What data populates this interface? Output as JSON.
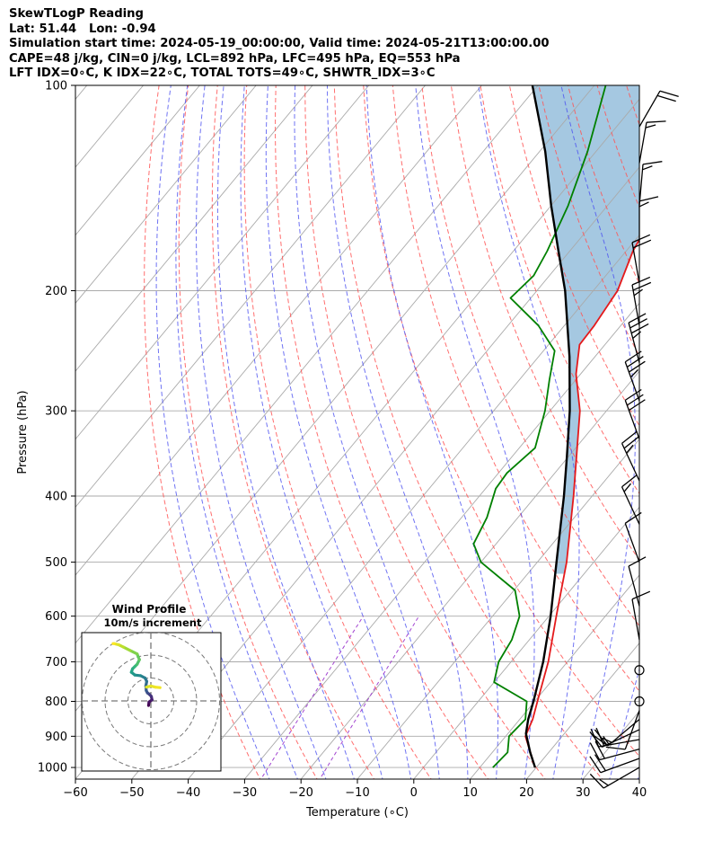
{
  "header_lines": [
    "SkewTLogP Reading",
    "Lat: 51.44   Lon: -0.94",
    "Simulation start time: 2024-05-19_00:00:00, Valid time: 2024-05-21T13:00:00.00",
    "CAPE=48 j/kg, CIN=0 j/kg, LCL=892 hPa, LFC=495 hPa, EQ=553 hPa",
    "LFT IDX=0∘C, K IDX=22∘C, TOTAL TOTS=49∘C, SHWTR_IDX=3∘C"
  ],
  "colors": {
    "temperature": "#e41a1c",
    "dewpoint": "#008000",
    "parcel": "#000000",
    "cape_fill": "#a5c8e1",
    "isotherm": "#aaaaaa",
    "dry_adiabat": "#ff5555",
    "moist_adiabat": "#4b50f0",
    "mixing_ratio": "#9932cc"
  },
  "chart_data": [
    {
      "type": "line",
      "subtype": "skew-t log-p diagram",
      "xlabel": "Temperature (∘C)",
      "ylabel": "Pressure (hPa)",
      "xlim": [
        -60,
        40
      ],
      "ylim": [
        1040,
        100
      ],
      "y_scale": "log (inverted)",
      "x_ticks": [
        -60,
        -50,
        -40,
        -30,
        -20,
        -10,
        0,
        10,
        20,
        30,
        40
      ],
      "x_tick_labels": [
        "−60",
        "−50",
        "−40",
        "−30",
        "−20",
        "−10",
        "0",
        "10",
        "20",
        "30",
        "40"
      ],
      "y_ticks": [
        1000,
        900,
        800,
        700,
        600,
        500,
        400,
        300,
        200,
        100
      ],
      "y_tick_labels": [
        "1000",
        "900",
        "800",
        "700",
        "600",
        "500",
        "400",
        "300",
        "200",
        "100"
      ],
      "grid": true,
      "series": [
        {
          "role": "temperature",
          "points": [
            {
              "p": 1000,
              "t": 19.8
            },
            {
              "p": 900,
              "t": 13.5
            },
            {
              "p": 850,
              "t": 12.3
            },
            {
              "p": 800,
              "t": 10.5
            },
            {
              "p": 700,
              "t": 6.6
            },
            {
              "p": 600,
              "t": 1.3
            },
            {
              "p": 500,
              "t": -4.8
            },
            {
              "p": 400,
              "t": -13.3
            },
            {
              "p": 350,
              "t": -18.6
            },
            {
              "p": 300,
              "t": -24.7
            },
            {
              "p": 265,
              "t": -30.8
            },
            {
              "p": 240,
              "t": -34.5
            },
            {
              "p": 225,
              "t": -34.7
            },
            {
              "p": 200,
              "t": -35.7
            },
            {
              "p": 175,
              "t": -38.8
            },
            {
              "p": 150,
              "t": -41.0
            },
            {
              "p": 125,
              "t": -43.2
            },
            {
              "p": 110,
              "t": -44.5
            },
            {
              "p": 100,
              "t": -45.2
            }
          ]
        },
        {
          "role": "dewpoint",
          "points": [
            {
              "p": 1000,
              "t": 12.3
            },
            {
              "p": 950,
              "t": 12.7
            },
            {
              "p": 900,
              "t": 10.6
            },
            {
              "p": 850,
              "t": 11.0
            },
            {
              "p": 800,
              "t": 8.6
            },
            {
              "p": 750,
              "t": 0.0
            },
            {
              "p": 700,
              "t": -2.2
            },
            {
              "p": 650,
              "t": -3.1
            },
            {
              "p": 600,
              "t": -5.2
            },
            {
              "p": 550,
              "t": -9.8
            },
            {
              "p": 500,
              "t": -20.0
            },
            {
              "p": 470,
              "t": -24.0
            },
            {
              "p": 430,
              "t": -25.5
            },
            {
              "p": 390,
              "t": -28.2
            },
            {
              "p": 370,
              "t": -28.5
            },
            {
              "p": 340,
              "t": -27.2
            },
            {
              "p": 300,
              "t": -30.9
            },
            {
              "p": 270,
              "t": -34.7
            },
            {
              "p": 245,
              "t": -38.0
            },
            {
              "p": 225,
              "t": -44.6
            },
            {
              "p": 205,
              "t": -53.6
            },
            {
              "p": 190,
              "t": -52.8
            },
            {
              "p": 175,
              "t": -54.0
            },
            {
              "p": 150,
              "t": -57.0
            },
            {
              "p": 125,
              "t": -61.5
            },
            {
              "p": 100,
              "t": -68.0
            }
          ]
        },
        {
          "role": "parcel",
          "points": [
            {
              "p": 1000,
              "t": 19.8
            },
            {
              "p": 950,
              "t": 16.7
            },
            {
              "p": 892,
              "t": 13.2
            },
            {
              "p": 850,
              "t": 11.5
            },
            {
              "p": 800,
              "t": 9.8
            },
            {
              "p": 700,
              "t": 5.7
            },
            {
              "p": 600,
              "t": 0.3
            },
            {
              "p": 500,
              "t": -6.6
            },
            {
              "p": 400,
              "t": -15.0
            },
            {
              "p": 350,
              "t": -20.3
            },
            {
              "p": 300,
              "t": -26.5
            },
            {
              "p": 250,
              "t": -34.5
            },
            {
              "p": 200,
              "t": -45.0
            },
            {
              "p": 175,
              "t": -52.0
            },
            {
              "p": 150,
              "t": -60.0
            },
            {
              "p": 125,
              "t": -69.0
            },
            {
              "p": 100,
              "t": -81.0
            }
          ]
        }
      ],
      "wind_barbs": [
        {
          "p": 1000,
          "speed_kt": 15,
          "dir_deg": 240
        },
        {
          "p": 970,
          "speed_kt": 20,
          "dir_deg": 250
        },
        {
          "p": 940,
          "speed_kt": 20,
          "dir_deg": 255
        },
        {
          "p": 910,
          "speed_kt": 25,
          "dir_deg": 260
        },
        {
          "p": 880,
          "speed_kt": 20,
          "dir_deg": 245
        },
        {
          "p": 850,
          "speed_kt": 15,
          "dir_deg": 230
        },
        {
          "p": 825,
          "speed_kt": 10,
          "dir_deg": 200
        },
        {
          "p": 800,
          "speed_kt": 0,
          "dir_deg": 0
        },
        {
          "p": 720,
          "speed_kt": 0,
          "dir_deg": 0
        },
        {
          "p": 650,
          "speed_kt": 10,
          "dir_deg": 350
        },
        {
          "p": 580,
          "speed_kt": 10,
          "dir_deg": 345
        },
        {
          "p": 500,
          "speed_kt": 10,
          "dir_deg": 340
        },
        {
          "p": 440,
          "speed_kt": 15,
          "dir_deg": 335
        },
        {
          "p": 380,
          "speed_kt": 25,
          "dir_deg": 335
        },
        {
          "p": 330,
          "speed_kt": 30,
          "dir_deg": 340
        },
        {
          "p": 290,
          "speed_kt": 35,
          "dir_deg": 340
        },
        {
          "p": 255,
          "speed_kt": 35,
          "dir_deg": 345
        },
        {
          "p": 225,
          "speed_kt": 25,
          "dir_deg": 350
        },
        {
          "p": 195,
          "speed_kt": 20,
          "dir_deg": 350
        },
        {
          "p": 170,
          "speed_kt": 15,
          "dir_deg": 0
        },
        {
          "p": 150,
          "speed_kt": 15,
          "dir_deg": 5
        },
        {
          "p": 130,
          "speed_kt": 15,
          "dir_deg": 10
        },
        {
          "p": 115,
          "speed_kt": 20,
          "dir_deg": 30
        }
      ]
    },
    {
      "type": "line",
      "subtype": "hodograph",
      "title": "Wind Profile",
      "subtitle": "10m/s increment",
      "ring_interval": 10,
      "grid": true,
      "colormap": "viridis",
      "points": [
        {
          "u": -1.0,
          "v": -2.0
        },
        {
          "u": -0.8,
          "v": -0.5
        },
        {
          "u": 0.5,
          "v": 0.5
        },
        {
          "u": 0.2,
          "v": 2.0
        },
        {
          "u": -0.8,
          "v": 3.0
        },
        {
          "u": -1.5,
          "v": 3.5
        },
        {
          "u": -2.0,
          "v": 4.5
        },
        {
          "u": -2.2,
          "v": 6.5
        },
        {
          "u": -1.8,
          "v": 8.5
        },
        {
          "u": -2.5,
          "v": 10.0
        },
        {
          "u": -4.5,
          "v": 11.0
        },
        {
          "u": -7.0,
          "v": 11.3
        },
        {
          "u": -8.5,
          "v": 12.5
        },
        {
          "u": -8.0,
          "v": 14.0
        },
        {
          "u": -7.0,
          "v": 15.0
        },
        {
          "u": -6.0,
          "v": 16.0
        },
        {
          "u": -5.0,
          "v": 18.0
        },
        {
          "u": -6.0,
          "v": 20.5
        },
        {
          "u": -9.0,
          "v": 22.0
        },
        {
          "u": -12.0,
          "v": 23.5
        },
        {
          "u": -14.0,
          "v": 24.5
        },
        {
          "u": -16.0,
          "v": 25.0
        },
        {
          "u": -16.5,
          "v": 25.0
        }
      ],
      "extra_points": [
        {
          "u": -2.0,
          "v": 6.0
        },
        {
          "u": 0.0,
          "v": 6.5
        },
        {
          "u": 2.0,
          "v": 6.0
        },
        {
          "u": 4.0,
          "v": 5.8
        }
      ]
    }
  ]
}
